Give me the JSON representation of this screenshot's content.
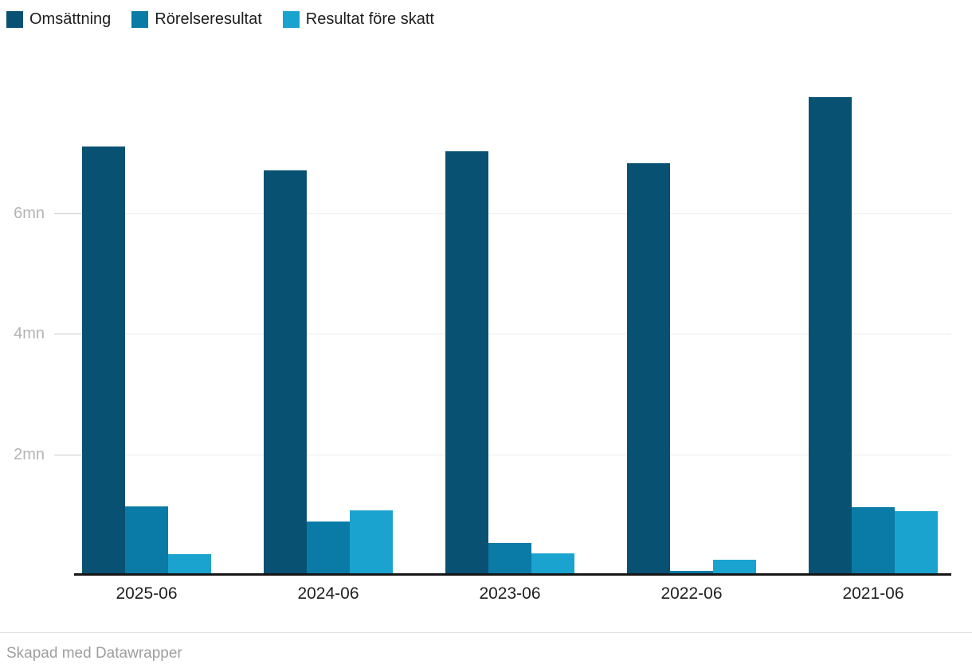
{
  "legend": {
    "items": [
      {
        "label": "Omsättning",
        "color": "#095173"
      },
      {
        "label": "Rörelseresultat",
        "color": "#0a7aa6"
      },
      {
        "label": "Resultat före skatt",
        "color": "#1ba3cf"
      }
    ]
  },
  "chart_data": {
    "type": "bar",
    "categories": [
      "2025-06",
      "2024-06",
      "2023-06",
      "2022-06",
      "2021-06"
    ],
    "series": [
      {
        "name": "Omsättning",
        "color": "#095173",
        "values": [
          7.09,
          6.69,
          7.01,
          6.81,
          7.91
        ]
      },
      {
        "name": "Rörelseresultat",
        "color": "#0a7aa6",
        "values": [
          1.12,
          0.87,
          0.51,
          0.05,
          1.11
        ]
      },
      {
        "name": "Resultat före skatt",
        "color": "#1ba3cf",
        "values": [
          0.33,
          1.06,
          0.34,
          0.24,
          1.04
        ]
      }
    ],
    "unit": "mn",
    "yticks": [
      {
        "value": 2,
        "label": "2mn"
      },
      {
        "value": 4,
        "label": "4mn"
      },
      {
        "value": 6,
        "label": "6mn"
      }
    ],
    "ylim": [
      0,
      8.5
    ],
    "grid": true,
    "legend_position": "top-left",
    "xlabel": "",
    "ylabel": ""
  },
  "colors": {
    "background": "#ffffff",
    "axis_line": "#161616",
    "gridline": "#ececec",
    "grid_tick": "#c9c9c9",
    "y_label": "#b4b4b4",
    "x_label": "#1f1f1f",
    "legend_text": "#1d1d1d",
    "footer_separator": "#e0e0e0",
    "footer_text": "#9e9e9e"
  },
  "footer": {
    "credit": "Skapad med Datawrapper"
  }
}
